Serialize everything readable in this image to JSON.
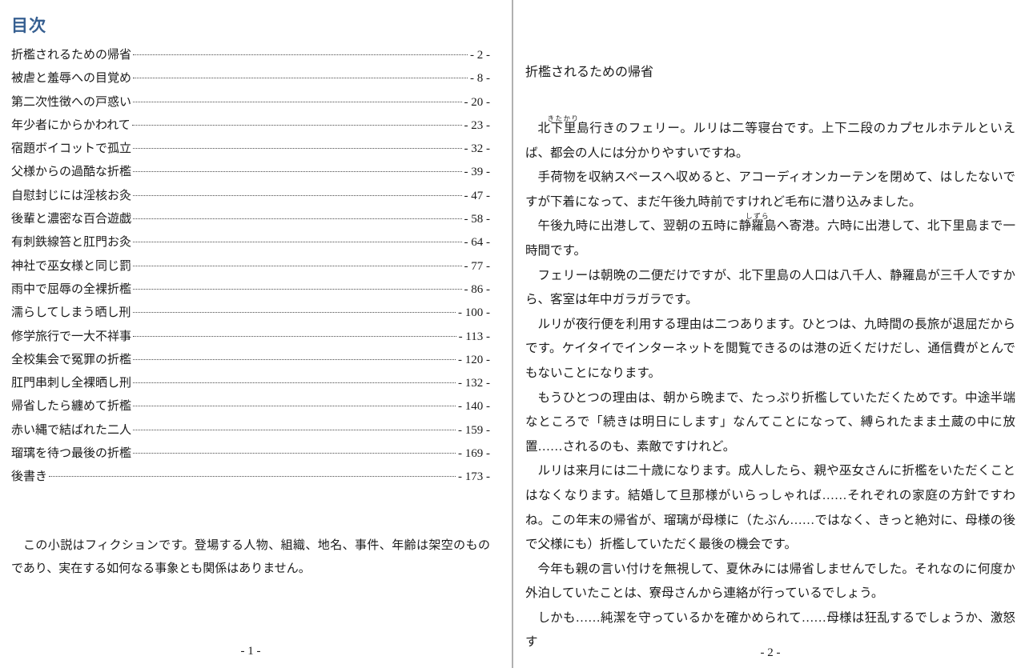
{
  "accent_color": "#365f91",
  "left_page": {
    "toc_heading": "目次",
    "toc_entries": [
      {
        "title": "折檻されるための帰省",
        "page": "- 2 -"
      },
      {
        "title": "被虐と羞辱への目覚め",
        "page": "- 8 -"
      },
      {
        "title": "第二次性徴への戸惑い",
        "page": "- 20 -"
      },
      {
        "title": "年少者にからかわれて",
        "page": "- 23 -"
      },
      {
        "title": "宿題ボイコットで孤立",
        "page": "- 32 -"
      },
      {
        "title": "父様からの過酷な折檻",
        "page": "- 39 -"
      },
      {
        "title": "自慰封じには淫核お灸",
        "page": "- 47 -"
      },
      {
        "title": "後輩と濃密な百合遊戯",
        "page": "- 58 -"
      },
      {
        "title": "有刺鉄線笞と肛門お灸",
        "page": "- 64 -"
      },
      {
        "title": "神社で巫女様と同じ罰",
        "page": "- 77 -"
      },
      {
        "title": "雨中で屈辱の全裸折檻",
        "page": "- 86 -"
      },
      {
        "title": "濡らしてしまう晒し刑",
        "page": "- 100 -"
      },
      {
        "title": "修学旅行で一大不祥事",
        "page": "- 113 -"
      },
      {
        "title": "全校集会で冤罪の折檻",
        "page": "- 120 -"
      },
      {
        "title": "肛門串刺し全裸晒し刑",
        "page": "- 132 -"
      },
      {
        "title": "帰省したら纏めて折檻",
        "page": "- 140 -"
      },
      {
        "title": "赤い縄で結ばれた二人",
        "page": "- 159 -"
      },
      {
        "title": "瑠璃を待つ最後の折檻",
        "page": "- 169 -"
      },
      {
        "title": "後書き",
        "page": "- 173 -"
      }
    ],
    "disclaimer": "この小説はフィクションです。登場する人物、組織、地名、事件、年齢は架空のものであり、実在する如何なる事象とも関係はありません。",
    "page_number": "- 1 -"
  },
  "right_page": {
    "chapter_title": "折檻されるための帰省",
    "paragraphs": [
      {
        "segments": [
          {
            "text": "北下里",
            "ruby": "きたかり"
          },
          {
            "text": "島行きのフェリー。ルリは二等寝台です。上下二段のカプセルホテルといえば、都会の人には分かりやすいですね。"
          }
        ]
      },
      {
        "segments": [
          {
            "text": "手荷物を収納スペースへ収めると、アコーディオンカーテンを閉めて、はしたないですが下着になって、まだ午後九時前ですけれど毛布に潜り込みました。"
          }
        ]
      },
      {
        "segments": [
          {
            "text": "午後九時に出港して、翌朝の五時に"
          },
          {
            "text": "静羅",
            "ruby": "しずら"
          },
          {
            "text": "島へ寄港。六時に出港して、北下里島まで一時間です。"
          }
        ]
      },
      {
        "segments": [
          {
            "text": "フェリーは朝晩の二便だけですが、北下里島の人口は八千人、静羅島が三千人ですから、客室は年中ガラガラです。"
          }
        ]
      },
      {
        "segments": [
          {
            "text": "ルリが夜行便を利用する理由は二つあります。ひとつは、九時間の長旅が退屈だからです。ケイタイでインターネットを閲覧できるのは港の近くだけだし、通信費がとんでもないことになります。"
          }
        ]
      },
      {
        "segments": [
          {
            "text": "もうひとつの理由は、朝から晩まで、たっぷり折檻していただくためです。中途半端なところで「続きは明日にします」なんてことになって、縛られたまま土蔵の中に放置……されるのも、素敵ですけれど。"
          }
        ]
      },
      {
        "segments": [
          {
            "text": "ルリは来月には二十歳になります。成人したら、親や巫女さんに折檻をいただくことはなくなります。結婚して旦那様がいらっしゃれば……それぞれの家庭の方針ですわね。この年末の帰省が、瑠璃が母様に（たぶん……ではなく、きっと絶対に、母様の後で父様にも）折檻していただく最後の機会です。"
          }
        ]
      },
      {
        "segments": [
          {
            "text": "今年も親の言い付けを無視して、夏休みには帰省しませんでした。それなのに何度か外泊していたことは、寮母さんから連絡が行っているでしょう。"
          }
        ]
      },
      {
        "segments": [
          {
            "text": "しかも……純潔を守っているかを確かめられて……母様は狂乱するでしょうか、激怒す"
          }
        ]
      }
    ],
    "page_number": "- 2 -"
  }
}
